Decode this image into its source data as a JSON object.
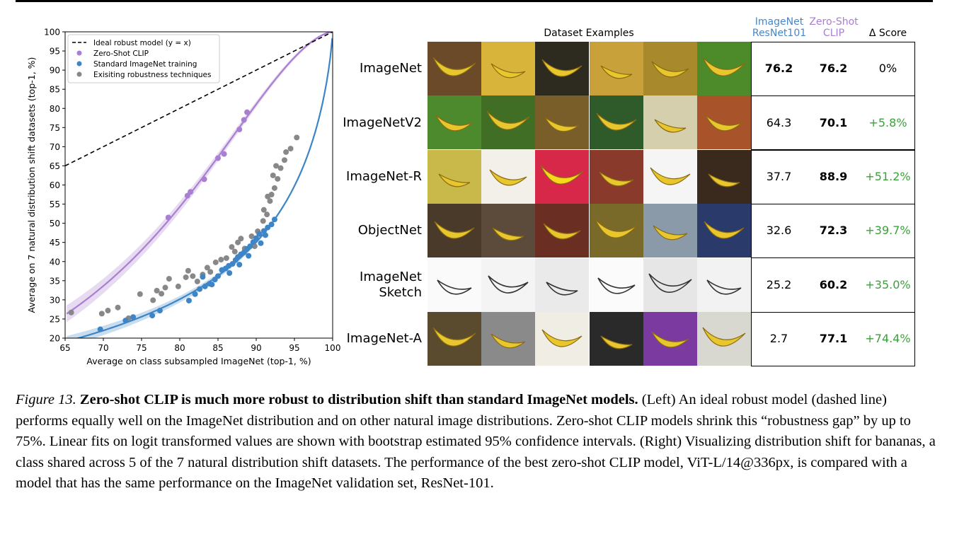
{
  "chart_data": {
    "type": "scatter",
    "xlabel": "Average on class subsampled ImageNet (top-1, %)",
    "ylabel": "Average on 7 natural distribution shift datasets (top-1, %)",
    "xlim": [
      65,
      100
    ],
    "ylim": [
      20,
      100
    ],
    "xticks": [
      "65",
      "70",
      "75",
      "80",
      "85",
      "90",
      "95",
      "100"
    ],
    "yticks": [
      "20",
      "25",
      "30",
      "35",
      "40",
      "45",
      "50",
      "55",
      "60",
      "65",
      "70",
      "75",
      "80",
      "85",
      "90",
      "95",
      "100"
    ],
    "legend_position": "top-left",
    "legend": [
      "Ideal robust model (y = x)",
      "Zero-Shot CLIP",
      "Standard ImageNet training",
      "Exisiting robustness techniques"
    ],
    "series": [
      {
        "name": "Zero-Shot CLIP",
        "color": "#a97fd1",
        "fit": "logit-linear with 95% CI",
        "points": [
          [
            78.5,
            51.5
          ],
          [
            81.0,
            57.2
          ],
          [
            81.4,
            58.2
          ],
          [
            83.2,
            61.5
          ],
          [
            85.0,
            67.0
          ],
          [
            85.8,
            68.1
          ],
          [
            87.8,
            74.5
          ],
          [
            88.4,
            77.0
          ],
          [
            88.8,
            79.0
          ]
        ]
      },
      {
        "name": "Standard ImageNet training",
        "color": "#3d85c6",
        "fit": "logit-linear with 95% CI",
        "points": [
          [
            69.6,
            22.3
          ],
          [
            72.9,
            24.6
          ],
          [
            73.9,
            25.5
          ],
          [
            76.4,
            25.9
          ],
          [
            77.4,
            27.2
          ],
          [
            81.2,
            29.8
          ],
          [
            82.0,
            31.5
          ],
          [
            82.6,
            32.8
          ],
          [
            83.3,
            33.5
          ],
          [
            83.9,
            34.2
          ],
          [
            84.6,
            35.3
          ],
          [
            85.0,
            36.2
          ],
          [
            85.5,
            37.8
          ],
          [
            86.0,
            38.2
          ],
          [
            86.4,
            38.9
          ],
          [
            86.9,
            39.4
          ],
          [
            87.3,
            40.4
          ],
          [
            87.6,
            41.2
          ],
          [
            88.0,
            41.9
          ],
          [
            88.4,
            42.4
          ],
          [
            88.8,
            43.3
          ],
          [
            89.2,
            44.0
          ],
          [
            89.6,
            45.1
          ],
          [
            90.0,
            46.1
          ],
          [
            90.4,
            47.2
          ],
          [
            91.0,
            48.0
          ],
          [
            91.5,
            48.9
          ],
          [
            92.0,
            49.7
          ],
          [
            92.4,
            51.0
          ],
          [
            83.0,
            36.0
          ],
          [
            84.2,
            34.0
          ],
          [
            86.5,
            37.0
          ],
          [
            87.8,
            39.2
          ],
          [
            89.0,
            41.5
          ],
          [
            90.6,
            44.8
          ],
          [
            91.2,
            46.9
          ]
        ]
      },
      {
        "name": "Exisiting robustness techniques",
        "color": "#888888",
        "points": [
          [
            65.8,
            26.7
          ],
          [
            69.8,
            26.4
          ],
          [
            70.6,
            27.2
          ],
          [
            71.9,
            28.0
          ],
          [
            73.3,
            25.2
          ],
          [
            74.8,
            31.5
          ],
          [
            76.5,
            29.9
          ],
          [
            77.0,
            32.4
          ],
          [
            77.6,
            31.6
          ],
          [
            78.1,
            33.2
          ],
          [
            78.6,
            35.5
          ],
          [
            79.8,
            33.5
          ],
          [
            80.8,
            35.9
          ],
          [
            81.1,
            37.6
          ],
          [
            81.7,
            36.2
          ],
          [
            82.3,
            34.8
          ],
          [
            83.0,
            36.6
          ],
          [
            83.6,
            38.4
          ],
          [
            84.0,
            37.3
          ],
          [
            84.7,
            39.8
          ],
          [
            85.4,
            40.5
          ],
          [
            86.1,
            40.9
          ],
          [
            87.2,
            42.6
          ],
          [
            87.6,
            45.0
          ],
          [
            88.5,
            43.4
          ],
          [
            89.4,
            46.6
          ],
          [
            90.2,
            47.9
          ],
          [
            90.9,
            50.6
          ],
          [
            91.4,
            52.3
          ],
          [
            91.8,
            55.8
          ],
          [
            92.0,
            57.5
          ],
          [
            92.4,
            59.2
          ],
          [
            92.8,
            61.6
          ],
          [
            93.2,
            64.4
          ],
          [
            93.7,
            66.5
          ],
          [
            93.9,
            68.6
          ],
          [
            94.5,
            69.5
          ],
          [
            95.3,
            72.4
          ],
          [
            91.0,
            53.5
          ],
          [
            91.5,
            57.0
          ],
          [
            92.2,
            62.5
          ],
          [
            92.6,
            65.0
          ],
          [
            89.8,
            44.0
          ],
          [
            86.8,
            43.8
          ],
          [
            88.0,
            46.0
          ]
        ]
      },
      {
        "name": "Ideal robust model (y = x)",
        "color": "#000000",
        "points": [
          [
            65,
            65
          ],
          [
            100,
            100
          ]
        ]
      }
    ]
  },
  "table": {
    "title": "Dataset Examples",
    "col_resnet": "ImageNet\nResNet101",
    "col_clip": "Zero-Shot\nCLIP",
    "col_delta": "Δ Score",
    "colors": {
      "resnet": "#4a86c5",
      "clip": "#a97fd1",
      "delta": "#3aa23a"
    },
    "rows": [
      {
        "label": "ImageNet",
        "resnet": "76.2",
        "clip": "76.2",
        "delta": "0%",
        "delta_colored": false
      },
      {
        "label": "ImageNetV2",
        "resnet": "64.3",
        "clip": "70.1",
        "delta": "+5.8%",
        "delta_colored": true
      },
      {
        "label": "ImageNet-R",
        "resnet": "37.7",
        "clip": "88.9",
        "delta": "+51.2%",
        "delta_colored": true
      },
      {
        "label": "ObjectNet",
        "resnet": "32.6",
        "clip": "72.3",
        "delta": "+39.7%",
        "delta_colored": true
      },
      {
        "label": "ImageNet\nSketch",
        "resnet": "25.2",
        "clip": "60.2",
        "delta": "+35.0%",
        "delta_colored": true
      },
      {
        "label": "ImageNet-A",
        "resnet": "2.7",
        "clip": "77.1",
        "delta": "+74.4%",
        "delta_colored": true
      }
    ]
  },
  "caption": {
    "figure_id": "Figure 13.",
    "title": "Zero-shot CLIP is much more robust to distribution shift than standard ImageNet models.",
    "body": "(Left) An ideal robust model (dashed line) performs equally well on the ImageNet distribution and on other natural image distributions. Zero-shot CLIP models shrink this “robustness gap” by up to 75%. Linear fits on logit transformed values are shown with bootstrap estimated 95% confidence intervals. (Right) Visualizing distribution shift for bananas, a class shared across 5 of the 7 natural distribution shift datasets. The performance of the best zero-shot CLIP model, ViT-L/14@336px, is compared with a model that has the same performance on the ImageNet validation set, ResNet-101."
  }
}
